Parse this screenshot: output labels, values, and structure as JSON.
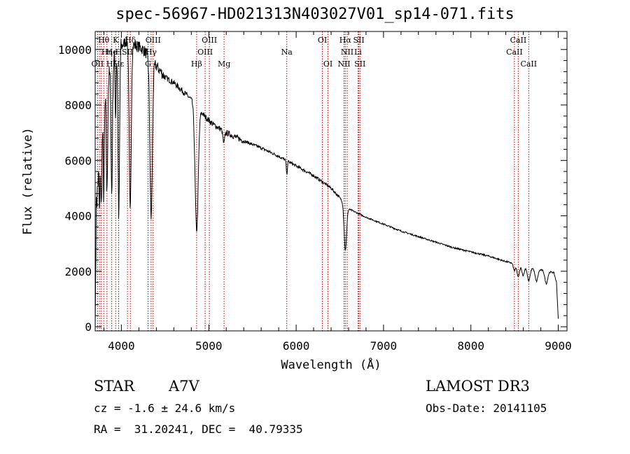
{
  "chart_data": {
    "type": "line",
    "title": "spec-56967-HD021313N403027V01_sp14-071.fits",
    "xlabel": "Wavelength (Å)",
    "ylabel": "Flux (relative)",
    "xlim": [
      3700,
      9100
    ],
    "ylim": [
      -150,
      10650
    ],
    "xticks": [
      4000,
      5000,
      6000,
      7000,
      8000,
      9000
    ],
    "yticks": [
      0,
      2000,
      4000,
      6000,
      8000,
      10000
    ],
    "grid": false,
    "series": [
      {
        "name": "spectrum",
        "continuum": [
          [
            3700,
            0
          ],
          [
            3712,
            4300
          ],
          [
            3760,
            6500
          ],
          [
            3800,
            7800
          ],
          [
            3850,
            8900
          ],
          [
            3900,
            9500
          ],
          [
            3950,
            9900
          ],
          [
            4000,
            10100
          ],
          [
            4050,
            10300
          ],
          [
            4100,
            10200
          ],
          [
            4150,
            10150
          ],
          [
            4200,
            10100
          ],
          [
            4250,
            10000
          ],
          [
            4300,
            9800
          ],
          [
            4350,
            9600
          ],
          [
            4400,
            9400
          ],
          [
            4500,
            9000
          ],
          [
            4600,
            8800
          ],
          [
            4700,
            8500
          ],
          [
            4800,
            8200
          ],
          [
            4870,
            7950
          ],
          [
            4950,
            7600
          ],
          [
            5050,
            7300
          ],
          [
            5200,
            7000
          ],
          [
            5400,
            6700
          ],
          [
            5600,
            6450
          ],
          [
            5800,
            6150
          ],
          [
            6000,
            5800
          ],
          [
            6200,
            5450
          ],
          [
            6400,
            5000
          ],
          [
            6500,
            4650
          ],
          [
            6600,
            4250
          ],
          [
            6700,
            4100
          ],
          [
            6800,
            3950
          ],
          [
            7000,
            3700
          ],
          [
            7200,
            3450
          ],
          [
            7400,
            3250
          ],
          [
            7600,
            3050
          ],
          [
            7800,
            2850
          ],
          [
            8000,
            2700
          ],
          [
            8200,
            2550
          ],
          [
            8400,
            2350
          ],
          [
            8600,
            2200
          ],
          [
            8800,
            2050
          ],
          [
            8950,
            1950
          ],
          [
            8980,
            1600
          ],
          [
            9000,
            300
          ]
        ],
        "absorption_lines": [
          {
            "center": 3750,
            "depth": 2000,
            "width": 5
          },
          {
            "center": 3770,
            "depth": 2600,
            "width": 6
          },
          {
            "center": 3798,
            "depth": 3000,
            "width": 6
          },
          {
            "center": 3835,
            "depth": 3800,
            "width": 7
          },
          {
            "center": 3889,
            "depth": 4600,
            "width": 8
          },
          {
            "center": 3933,
            "depth": 2200,
            "width": 5
          },
          {
            "center": 3970,
            "depth": 6200,
            "width": 9
          },
          {
            "center": 4101,
            "depth": 6100,
            "width": 11
          },
          {
            "center": 4340,
            "depth": 5700,
            "width": 14
          },
          {
            "center": 4861,
            "depth": 4500,
            "width": 18
          },
          {
            "center": 5172,
            "depth": 450,
            "width": 10
          },
          {
            "center": 5893,
            "depth": 500,
            "width": 6
          },
          {
            "center": 6563,
            "depth": 1650,
            "width": 14
          },
          {
            "center": 8498,
            "depth": 250,
            "width": 12
          },
          {
            "center": 8542,
            "depth": 450,
            "width": 14
          },
          {
            "center": 8598,
            "depth": 350,
            "width": 14
          },
          {
            "center": 8662,
            "depth": 500,
            "width": 16
          },
          {
            "center": 8750,
            "depth": 450,
            "width": 16
          },
          {
            "center": 8863,
            "depth": 450,
            "width": 16
          }
        ]
      }
    ],
    "line_labels": [
      {
        "text": "Hθ",
        "x": 3798,
        "row": 0
      },
      {
        "text": "K",
        "x": 3934,
        "row": 0
      },
      {
        "text": "Hδ",
        "x": 4102,
        "row": 0
      },
      {
        "text": "OIII",
        "x": 4363,
        "row": 0
      },
      {
        "text": "OIII",
        "x": 5007,
        "row": 0
      },
      {
        "text": "OI",
        "x": 6300,
        "row": 0
      },
      {
        "text": "Hα",
        "x": 6563,
        "row": 0
      },
      {
        "text": "SII",
        "x": 6717,
        "row": 0
      },
      {
        "text": "CaII",
        "x": 8542,
        "row": 0
      },
      {
        "text": "Hη",
        "x": 3835,
        "row": 1
      },
      {
        "text": "He",
        "x": 3889,
        "row": 1
      },
      {
        "text": "H",
        "x": 3968,
        "row": 1
      },
      {
        "text": "SII",
        "x": 4069,
        "row": 1
      },
      {
        "text": "Hγ",
        "x": 4340,
        "row": 1
      },
      {
        "text": "OIII",
        "x": 4959,
        "row": 1
      },
      {
        "text": "Na",
        "x": 5893,
        "row": 1
      },
      {
        "text": "NII",
        "x": 6584,
        "row": 1
      },
      {
        "text": "Li",
        "x": 6708,
        "row": 1
      },
      {
        "text": "CaII",
        "x": 8498,
        "row": 1
      },
      {
        "text": "OII",
        "x": 3727,
        "row": 2
      },
      {
        "text": "Hζ",
        "x": 3889,
        "row": 2
      },
      {
        "text": "Hε",
        "x": 3970,
        "row": 2
      },
      {
        "text": "G",
        "x": 4305,
        "row": 2
      },
      {
        "text": "Hβ",
        "x": 4861,
        "row": 2
      },
      {
        "text": "Mg",
        "x": 5175,
        "row": 2
      },
      {
        "text": "OI",
        "x": 6364,
        "row": 2
      },
      {
        "text": "NII",
        "x": 6548,
        "row": 2
      },
      {
        "text": "SII",
        "x": 6731,
        "row": 2
      },
      {
        "text": "CaII",
        "x": 8662,
        "row": 2
      }
    ],
    "marker_lines": [
      3727,
      3750,
      3770,
      3798,
      3835,
      3889,
      3934,
      3968,
      4069,
      4102,
      4305,
      4340,
      4363,
      4861,
      4959,
      5007,
      5175,
      5893,
      6300,
      6364,
      6548,
      6563,
      6584,
      6708,
      6717,
      6731,
      8498,
      8542,
      8662
    ],
    "colors": {
      "spectrum": "#000000",
      "marker": "#c00000",
      "axis": "#000000"
    }
  },
  "info": {
    "object_class": "STAR",
    "subclass": "A7V",
    "survey": "LAMOST DR3",
    "cz": "cz = -1.6 ± 24.6 km/s",
    "obs_date": "Obs-Date: 20141105",
    "coords": "RA =  31.20241, DEC =  40.79335"
  }
}
